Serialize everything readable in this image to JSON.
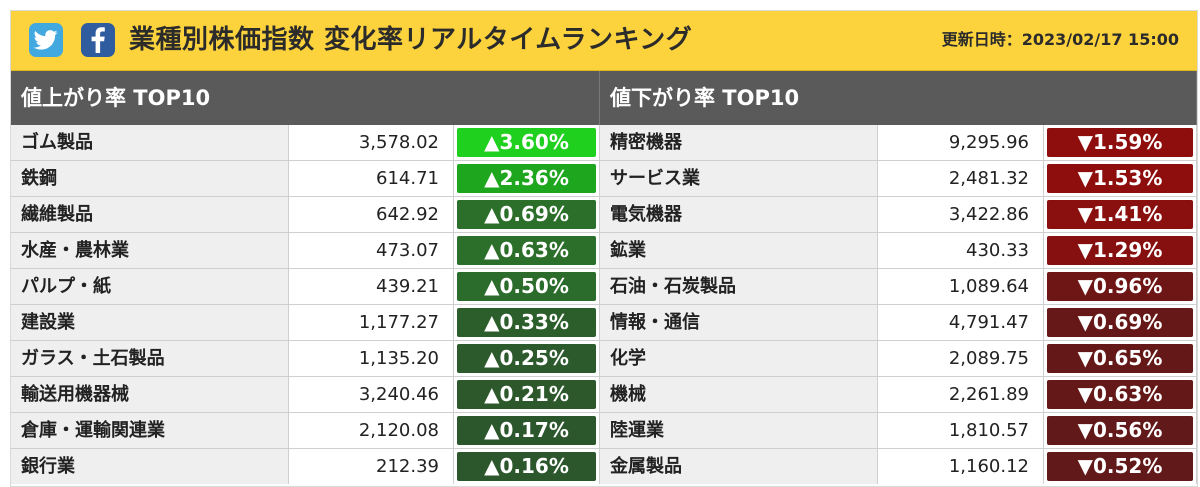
{
  "header": {
    "title": "業種別株価指数 変化率リアルタイムランキング",
    "updated": "更新日時：2023/02/17 15:00",
    "twitter_icon": "twitter-bird-icon",
    "facebook_icon": "facebook-f-icon",
    "twitter_color": "#41a8e0",
    "facebook_color": "#2f5c9e",
    "background_color": "#fcd33c"
  },
  "gainers": {
    "heading": "値上がり率 TOP10",
    "rows": [
      {
        "name": "ゴム製品",
        "value": "3,578.02",
        "change": "▲3.60%",
        "color": "#1fd01f"
      },
      {
        "name": "鉄鋼",
        "value": "614.71",
        "change": "▲2.36%",
        "color": "#1ea61e"
      },
      {
        "name": "繊維製品",
        "value": "642.92",
        "change": "▲0.69%",
        "color": "#2b6f2b"
      },
      {
        "name": "水産・農林業",
        "value": "473.07",
        "change": "▲0.63%",
        "color": "#2b6f2b"
      },
      {
        "name": "パルプ・紙",
        "value": "439.21",
        "change": "▲0.50%",
        "color": "#2b6b2b"
      },
      {
        "name": "建設業",
        "value": "1,177.27",
        "change": "▲0.33%",
        "color": "#2c5e2c"
      },
      {
        "name": "ガラス・土石製品",
        "value": "1,135.20",
        "change": "▲0.25%",
        "color": "#2c5a2c"
      },
      {
        "name": "輸送用機器械",
        "value": "3,240.46",
        "change": "▲0.21%",
        "color": "#2c582c"
      },
      {
        "name": "倉庫・運輸関連業",
        "value": "2,120.08",
        "change": "▲0.17%",
        "color": "#2c562c"
      },
      {
        "name": "銀行業",
        "value": "212.39",
        "change": "▲0.16%",
        "color": "#2c562c"
      }
    ]
  },
  "losers": {
    "heading": "値下がり率 TOP10",
    "rows": [
      {
        "name": "精密機器",
        "value": "9,295.96",
        "change": "▼1.59%",
        "color": "#8e0d0d"
      },
      {
        "name": "サービス業",
        "value": "2,481.32",
        "change": "▼1.53%",
        "color": "#8e0d0d"
      },
      {
        "name": "電気機器",
        "value": "3,422.86",
        "change": "▼1.41%",
        "color": "#8a0f0f"
      },
      {
        "name": "鉱業",
        "value": "430.33",
        "change": "▼1.29%",
        "color": "#861010"
      },
      {
        "name": "石油・石炭製品",
        "value": "1,089.64",
        "change": "▼0.96%",
        "color": "#6e1616"
      },
      {
        "name": "情報・通信",
        "value": "4,791.47",
        "change": "▼0.69%",
        "color": "#661818"
      },
      {
        "name": "化学",
        "value": "2,089.75",
        "change": "▼0.65%",
        "color": "#641818"
      },
      {
        "name": "機械",
        "value": "2,261.89",
        "change": "▼0.63%",
        "color": "#641818"
      },
      {
        "name": "陸運業",
        "value": "1,810.57",
        "change": "▼0.56%",
        "color": "#621919"
      },
      {
        "name": "金属製品",
        "value": "1,160.12",
        "change": "▼0.52%",
        "color": "#621919"
      }
    ]
  }
}
